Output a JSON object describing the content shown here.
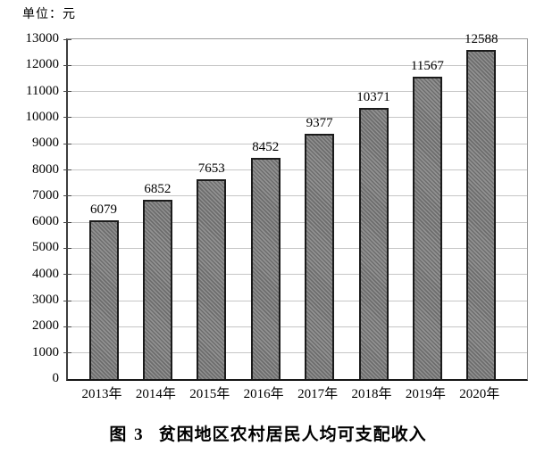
{
  "unit_label": "单位：元",
  "caption": {
    "prefix": "图 3",
    "text": "贫困地区农村居民人均可支配收入"
  },
  "chart_data": {
    "type": "bar",
    "title": "图 3 贫困地区农村居民人均可支配收入",
    "unit_label": "单位：元",
    "categories": [
      "2013年",
      "2014年",
      "2015年",
      "2016年",
      "2017年",
      "2018年",
      "2019年",
      "2020年"
    ],
    "values": [
      6079,
      6852,
      7653,
      8452,
      9377,
      10371,
      11567,
      12588
    ],
    "xlabel": "",
    "ylabel": "",
    "ylim": [
      0,
      13000
    ],
    "ytick_step": 1000,
    "grid": true,
    "legend": "none",
    "bar_hatch": "diagonal"
  },
  "colors": {
    "background": "#ffffff",
    "bar_fill_base": "#919191",
    "bar_fill_stripe": "#6d6d6d",
    "bar_border": "#1b1b1b",
    "gridline": "#c6c6c6",
    "axis_left": "#3f3f3f",
    "axis_bottom": "#161616",
    "frame": "#9c9c9c",
    "text": "#000000"
  }
}
